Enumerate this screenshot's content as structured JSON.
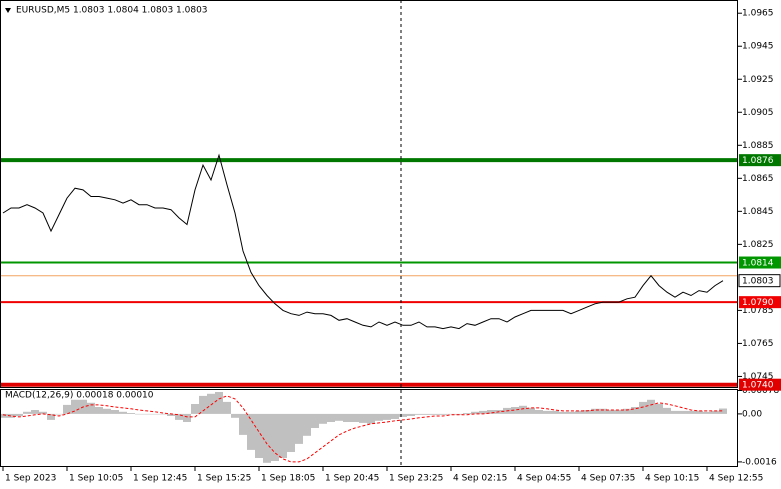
{
  "chart_data": [
    {
      "type": "line",
      "title": "EURUSD,M5  1.0803 1.0804 1.0803 1.0803",
      "categories": [
        "1 Sep 2023",
        null,
        null,
        null,
        null,
        null,
        null,
        null,
        "1 Sep 10:05",
        null,
        null,
        null,
        null,
        null,
        null,
        null,
        "1 Sep 12:45",
        null,
        null,
        null,
        null,
        null,
        null,
        null,
        "1 Sep 15:25",
        null,
        null,
        null,
        null,
        null,
        null,
        null,
        "1 Sep 18:05",
        null,
        null,
        null,
        null,
        null,
        null,
        null,
        "1 Sep 20:45",
        null,
        null,
        null,
        null,
        null,
        null,
        null,
        "1 Sep 23:25",
        null,
        null,
        null,
        null,
        null,
        null,
        null,
        "4 Sep 02:15",
        null,
        null,
        null,
        null,
        null,
        null,
        null,
        "4 Sep 04:55",
        null,
        null,
        null,
        null,
        null,
        null,
        null,
        "4 Sep 07:35",
        null,
        null,
        null,
        null,
        null,
        null,
        null,
        "4 Sep 10:15",
        null,
        null,
        null,
        null,
        null,
        null,
        null,
        "4 Sep 12:55",
        null,
        null
      ],
      "series": [
        {
          "name": "EURUSD,M5",
          "color": "#000000",
          "values": [
            1.0844,
            1.0847,
            1.0847,
            1.0849,
            1.0847,
            1.0844,
            1.0833,
            1.0843,
            1.0853,
            1.0859,
            1.0858,
            1.0854,
            1.0854,
            1.0853,
            1.0852,
            1.085,
            1.0852,
            1.0849,
            1.0849,
            1.0847,
            1.0847,
            1.0846,
            1.0841,
            1.0837,
            1.0858,
            1.0873,
            1.0864,
            1.0879,
            1.0861,
            1.0844,
            1.0821,
            1.0808,
            1.08,
            1.0794,
            1.0789,
            1.0785,
            1.0783,
            1.0782,
            1.0784,
            1.0783,
            1.0783,
            1.0782,
            1.0779,
            1.078,
            1.0778,
            1.0776,
            1.0775,
            1.0778,
            1.0776,
            1.0778,
            1.0776,
            1.0776,
            1.0778,
            1.0775,
            1.0775,
            1.0774,
            1.0775,
            1.0774,
            1.0777,
            1.0776,
            1.0778,
            1.078,
            1.078,
            1.0778,
            1.0781,
            1.0783,
            1.0785,
            1.0785,
            1.0785,
            1.0785,
            1.0785,
            1.0783,
            1.0785,
            1.0787,
            1.0789,
            1.079,
            1.079,
            1.079,
            1.0792,
            1.0793,
            1.08,
            1.0806,
            1.08,
            1.0796,
            1.0793,
            1.0796,
            1.0794,
            1.0797,
            1.0796,
            1.08,
            1.0803
          ]
        }
      ],
      "ylim": [
        1.0738,
        1.0973
      ],
      "yticks": [
        1.0965,
        1.0945,
        1.0925,
        1.0905,
        1.0885,
        1.0865,
        1.0845,
        1.0825,
        1.0785,
        1.0765,
        1.0745
      ],
      "levels": [
        {
          "value": 1.0876,
          "color": "#007800",
          "width": 4
        },
        {
          "value": 1.0814,
          "color": "#009600",
          "width": 2
        },
        {
          "value": 1.0806,
          "color": "#f4a460",
          "width": 1,
          "unlabeled": true
        },
        {
          "value": 1.079,
          "label": "1.0790",
          "color": "#f00000",
          "width": 2
        },
        {
          "value": 1.074,
          "label": "1.0740",
          "color": "#e00000",
          "width": 4
        }
      ]
    },
    {
      "type": "bar",
      "title": "MACD(12,26,9) 0.00018 0.00010",
      "color": "#c0c0c0",
      "values": [
        -0.00013,
        -0.00013,
        -7e-05,
        7e-05,
        0.00013,
        7e-05,
        -0.0002,
        0,
        0.0003,
        0.00047,
        0.00047,
        0.00037,
        0.00023,
        0.00017,
        0.00013,
        7e-05,
        3e-05,
        0,
        0,
        0,
        0,
        -7e-05,
        -0.0002,
        -0.00027,
        0.00033,
        0.0006,
        0.00067,
        0.00073,
        0.0004,
        -0.00013,
        -0.0007,
        -0.0012,
        -0.00147,
        -0.00163,
        -0.00157,
        -0.00147,
        -0.00127,
        -0.001,
        -0.00073,
        -0.00047,
        -0.00033,
        -0.00027,
        -0.00023,
        -0.00027,
        -0.00027,
        -0.0003,
        -0.00033,
        -0.00023,
        -0.0002,
        -0.00017,
        -0.0001,
        -7e-05,
        -3e-05,
        -3e-05,
        -3e-05,
        -3e-05,
        0,
        -3e-05,
        3e-05,
        7e-05,
        0.0001,
        0.00013,
        0.00013,
        0.0002,
        0.00023,
        0.00027,
        0.0002,
        0.00013,
        0.0001,
        0.0001,
        7e-05,
        7e-05,
        0.0001,
        0.00013,
        0.00017,
        0.00017,
        0.00013,
        0.00013,
        0.00017,
        0.00023,
        0.0004,
        0.00047,
        0.00033,
        0.0002,
        0.0001,
        0.0001,
        0.0001,
        0.0001,
        7e-05,
        0.0001,
        0.00018
      ],
      "signal": {
        "color": "#ff0000",
        "values": [
          -3e-05,
          -7e-05,
          -0.0001,
          -7e-05,
          -3e-05,
          0,
          -3e-05,
          -7e-05,
          0,
          0.0001,
          0.00023,
          0.0003,
          0.0003,
          0.00027,
          0.00023,
          0.0002,
          0.00017,
          0.00013,
          0.0001,
          7e-05,
          3e-05,
          0,
          -3e-05,
          -0.0001,
          -0.0001,
          0.0001,
          0.0003,
          0.0005,
          0.0006,
          0.0005,
          0.0002,
          -0.0002,
          -0.0006,
          -0.001,
          -0.0013,
          -0.0015,
          -0.0016,
          -0.0016,
          -0.0015,
          -0.0013,
          -0.0011,
          -0.0009,
          -0.0007,
          -0.00057,
          -0.00047,
          -0.0004,
          -0.00033,
          -0.0003,
          -0.00027,
          -0.00023,
          -0.0002,
          -0.00017,
          -0.00013,
          -0.0001,
          -7e-05,
          -7e-05,
          -3e-05,
          -3e-05,
          -3e-05,
          0,
          0,
          3e-05,
          7e-05,
          0.0001,
          0.00013,
          0.00017,
          0.0002,
          0.0002,
          0.00017,
          0.00013,
          0.0001,
          0.0001,
          0.0001,
          0.0001,
          0.00013,
          0.00013,
          0.00013,
          0.00013,
          0.00013,
          0.00017,
          0.00023,
          0.0003,
          0.00037,
          0.00033,
          0.00027,
          0.0002,
          0.00013,
          0.0001,
          0.0001,
          0.0001,
          0.0001
        ]
      },
      "ylim": [
        -0.00177,
        0.00083
      ],
      "yticks": [
        0.00078,
        {
          "value": 0,
          "label": "0.00"
        },
        -0.0016
      ]
    }
  ]
}
